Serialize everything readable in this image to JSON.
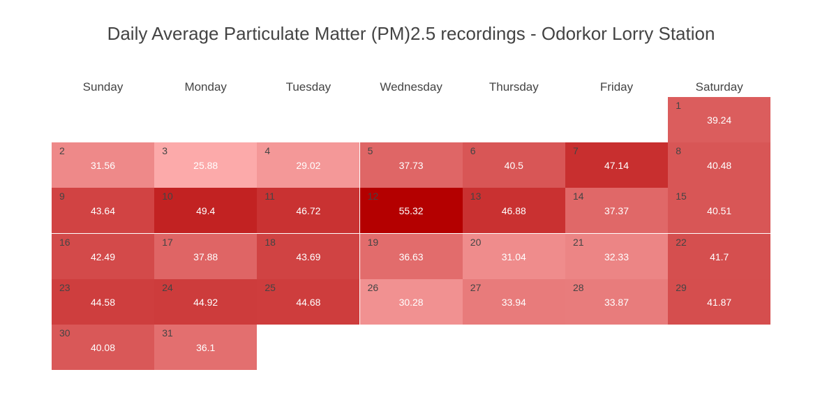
{
  "chart_data": {
    "type": "heatmap",
    "title": "Daily Average Particulate Matter (PM)2.5 recordings - Odorkor Lorry Station",
    "weekdays": [
      "Sunday",
      "Monday",
      "Tuesday",
      "Wednesday",
      "Thursday",
      "Friday",
      "Saturday"
    ],
    "first_weekday_index": 6,
    "days": [
      1,
      2,
      3,
      4,
      5,
      6,
      7,
      8,
      9,
      10,
      11,
      12,
      13,
      14,
      15,
      16,
      17,
      18,
      19,
      20,
      21,
      22,
      23,
      24,
      25,
      26,
      27,
      28,
      29,
      30,
      31
    ],
    "values": [
      39.24,
      31.56,
      25.88,
      29.02,
      37.73,
      40.5,
      47.14,
      40.48,
      43.64,
      49.4,
      46.72,
      55.32,
      46.88,
      37.37,
      40.51,
      42.49,
      37.88,
      43.69,
      36.63,
      31.04,
      32.33,
      41.7,
      44.58,
      44.92,
      44.68,
      30.28,
      33.94,
      33.87,
      41.87,
      40.08,
      36.1
    ],
    "value_labels": [
      "39.24",
      "31.56",
      "25.88",
      "29.02",
      "37.73",
      "40.5",
      "47.14",
      "40.48",
      "43.64",
      "49.4",
      "46.72",
      "55.32",
      "46.88",
      "37.37",
      "40.51",
      "42.49",
      "37.88",
      "43.69",
      "36.63",
      "31.04",
      "32.33",
      "41.7",
      "44.58",
      "44.92",
      "44.68",
      "30.28",
      "33.94",
      "33.87",
      "41.87",
      "40.08",
      "36.1"
    ],
    "color_low": "#fcaaaa",
    "color_high": "#b40000"
  }
}
